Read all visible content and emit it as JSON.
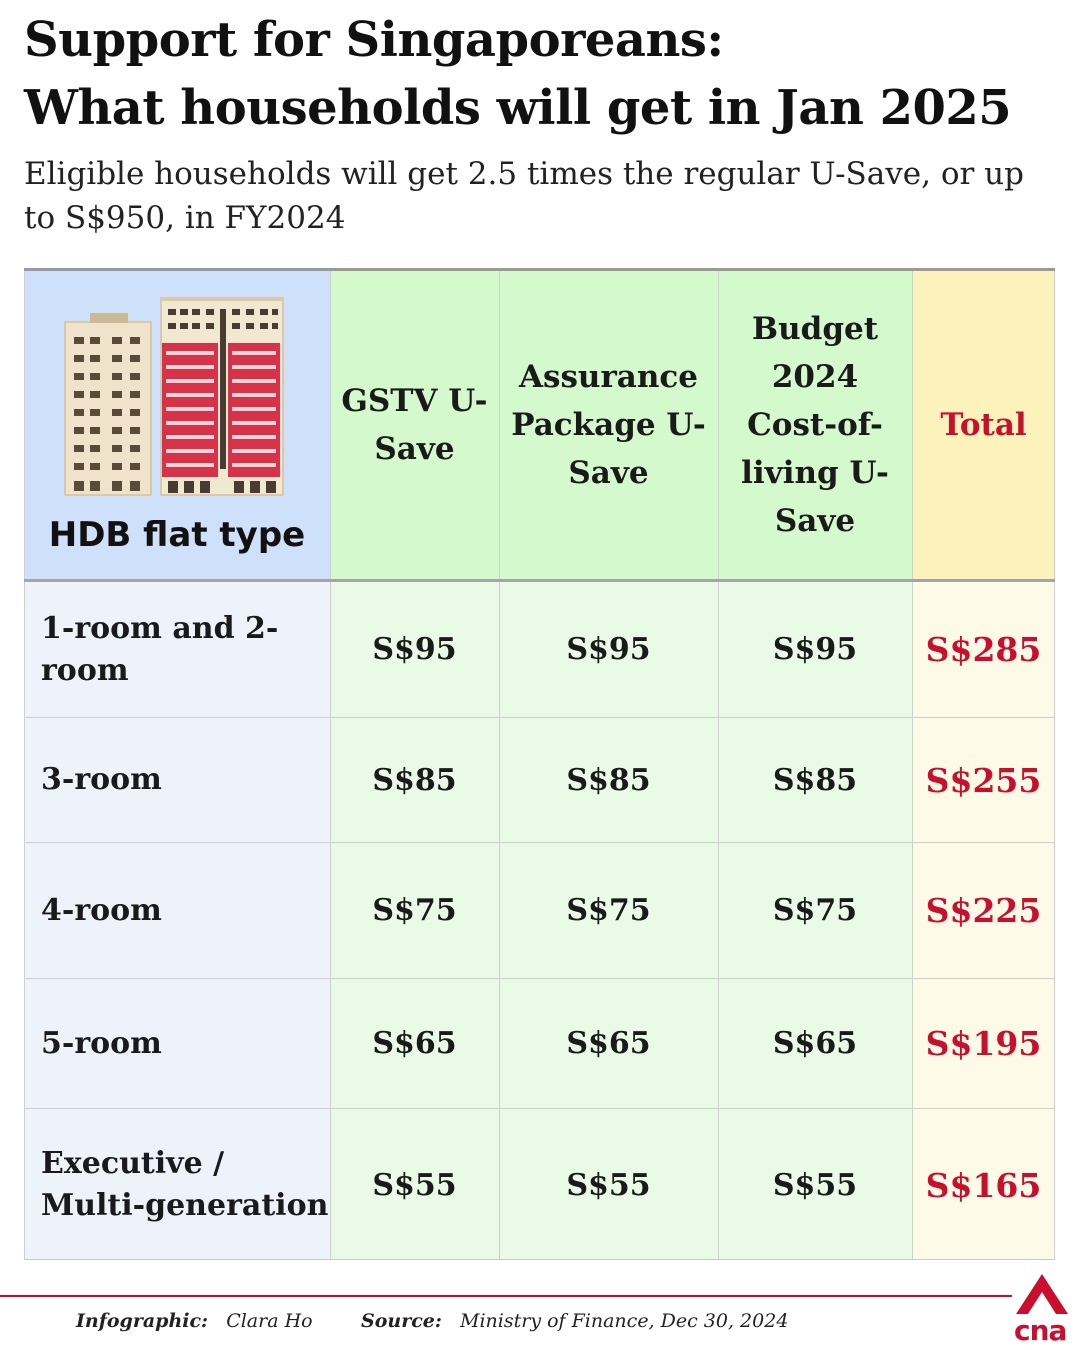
{
  "title": {
    "line1": "Support for Singaporeans:",
    "line2": "What households will get in Jan 2025"
  },
  "subtitle": "Eligible households will get 2.5 times the regular U-Save, or up to S$950, in FY2024",
  "table": {
    "first_header": "HDB flat type",
    "headers": [
      "GSTV U-Save",
      "Assurance Package U-Save",
      "Budget 2024 Cost-of-living U-Save",
      "Total"
    ],
    "rows": [
      {
        "type": "1-room and 2-room",
        "values": [
          "S$95",
          "S$95",
          "S$95",
          "S$285"
        ]
      },
      {
        "type": "3-room",
        "values": [
          "S$85",
          "S$85",
          "S$85",
          "S$255"
        ]
      },
      {
        "type": "4-room",
        "values": [
          "S$75",
          "S$75",
          "S$75",
          "S$225"
        ]
      },
      {
        "type": "5-room",
        "values": [
          "S$65",
          "S$65",
          "S$65",
          "S$195"
        ]
      },
      {
        "type": "Executive / Multi-generation",
        "values": [
          "S$55",
          "S$55",
          "S$55",
          "S$165"
        ]
      }
    ]
  },
  "footer": {
    "infographic_label": "Infographic:",
    "infographic_author": "Clara Ho",
    "source_label": "Source:",
    "source_text": "Ministry of Finance, Dec 30, 2024"
  },
  "logo": {
    "text": "cna"
  },
  "colors": {
    "accent_red": "#c8102e",
    "label_col_bg": "#eef2fb",
    "label_header_bg": "#cfe0fa",
    "green_col_bg": "#e9fbe6",
    "green_header_bg": "#d4f9cc",
    "total_col_bg": "#fdfbe7",
    "total_header_bg": "#fbf3bb"
  },
  "icons": {
    "header_image": "hdb-buildings-icon",
    "brand": "cna-logo-icon"
  }
}
